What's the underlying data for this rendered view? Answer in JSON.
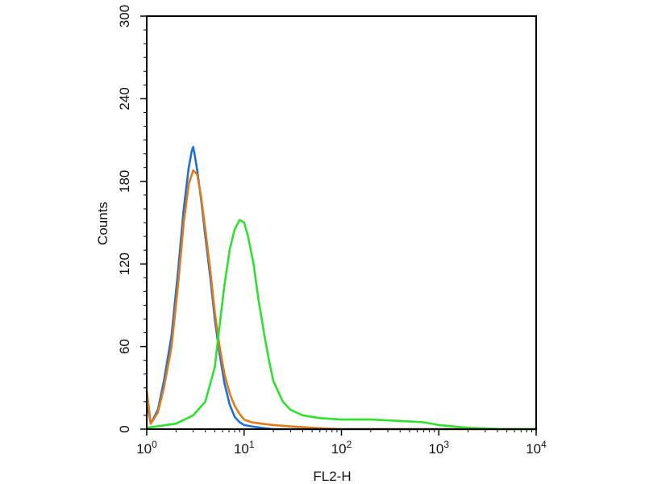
{
  "chart_data": {
    "type": "line",
    "title": "",
    "xlabel": "FL2-H",
    "ylabel": "Counts",
    "x_scale": "log",
    "xlim": [
      1,
      10000
    ],
    "ylim": [
      0,
      300
    ],
    "grid": false,
    "x_ticks": [
      {
        "value": 1,
        "base": "10",
        "exp": "0"
      },
      {
        "value": 10,
        "base": "10",
        "exp": "1"
      },
      {
        "value": 100,
        "base": "10",
        "exp": "2"
      },
      {
        "value": 1000,
        "base": "10",
        "exp": "3"
      },
      {
        "value": 10000,
        "base": "10",
        "exp": "4"
      }
    ],
    "y_ticks": [
      "0",
      "60",
      "120",
      "180",
      "240",
      "300"
    ],
    "series": [
      {
        "color": "#1f6fd6",
        "x": [
          1.0,
          1.1,
          1.3,
          1.5,
          1.8,
          2.1,
          2.4,
          2.7,
          2.9,
          3.0,
          3.1,
          3.3,
          3.6,
          4.0,
          4.5,
          5.0,
          5.6,
          6.3,
          7.1,
          8.0,
          9.0,
          10.0,
          12.0,
          15.0,
          20.0,
          30.0,
          60.0,
          200.0,
          10000.0
        ],
        "y": [
          20,
          4,
          14,
          35,
          68,
          115,
          160,
          190,
          202,
          205,
          200,
          188,
          168,
          140,
          110,
          80,
          55,
          33,
          18,
          9,
          5,
          3,
          2,
          1,
          0,
          0,
          0,
          0,
          0
        ]
      },
      {
        "color": "#e07b1a",
        "x": [
          1.0,
          1.1,
          1.3,
          1.5,
          1.8,
          2.1,
          2.4,
          2.7,
          3.0,
          3.3,
          3.6,
          4.0,
          4.5,
          5.0,
          5.6,
          6.3,
          7.1,
          8.0,
          9.0,
          10.0,
          12.0,
          15.0,
          20.0,
          30.0,
          50.0,
          100.0,
          10000.0
        ],
        "y": [
          28,
          4,
          12,
          30,
          60,
          105,
          150,
          178,
          188,
          185,
          170,
          145,
          115,
          85,
          60,
          40,
          26,
          17,
          11,
          7,
          5,
          4,
          3,
          2,
          1,
          0,
          0
        ]
      },
      {
        "color": "#2fe02f",
        "x": [
          1.0,
          2.0,
          3.0,
          4.0,
          5.0,
          5.6,
          6.3,
          7.1,
          8.0,
          9.0,
          10.0,
          11.0,
          12.5,
          14.0,
          16.0,
          18.0,
          20.0,
          25.0,
          30.0,
          40.0,
          60.0,
          100.0,
          200.0,
          400.0,
          700.0,
          1000.0,
          2000.0,
          5000.0,
          10000.0
        ],
        "y": [
          1,
          4,
          10,
          20,
          45,
          75,
          105,
          130,
          145,
          152,
          150,
          140,
          120,
          95,
          70,
          50,
          35,
          20,
          14,
          10,
          8,
          7,
          7,
          6,
          5,
          3,
          1,
          0,
          0
        ]
      }
    ]
  }
}
